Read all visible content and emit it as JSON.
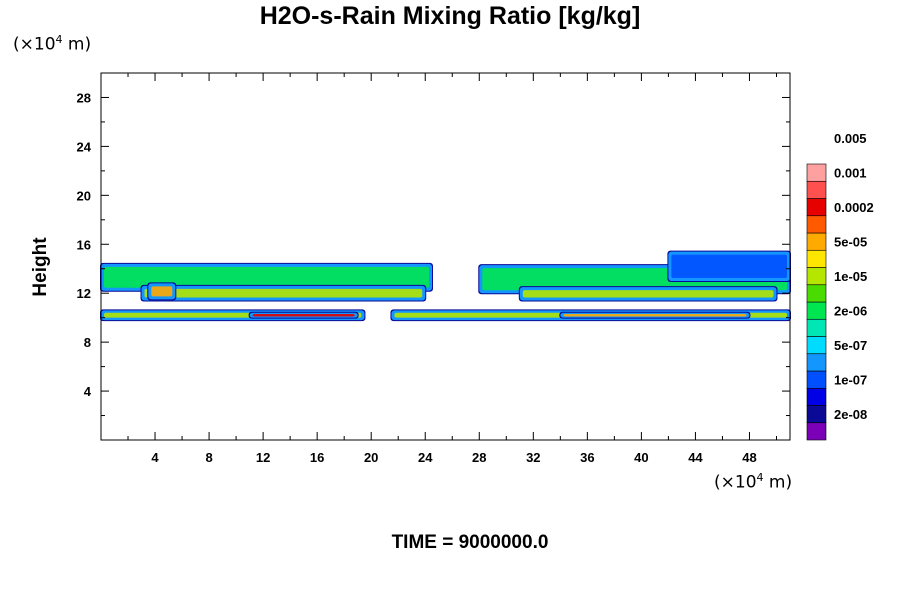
{
  "title": "H2O-s-Rain Mixing Ratio [kg/kg]",
  "y_unit": {
    "prefix": "(×10",
    "exp": "4",
    "suffix": " m)"
  },
  "x_unit": {
    "prefix": "(×10",
    "exp": "4",
    "suffix": " m)"
  },
  "footer_time": "TIME = 9000000.0",
  "chart_data": {
    "type": "heatmap",
    "title": "H2O-s-Rain Mixing Ratio [kg/kg]",
    "ylabel": "Height",
    "xlabel": "",
    "x_unit_label": "(×10^4 m)",
    "y_unit_label": "(×10^4 m)",
    "xlim": [
      0,
      51
    ],
    "ylim": [
      0,
      30
    ],
    "x_ticks": [
      "4",
      "8",
      "12",
      "16",
      "20",
      "24",
      "28",
      "32",
      "36",
      "40",
      "44",
      "48"
    ],
    "y_ticks": [
      "4",
      "8",
      "12",
      "16",
      "20",
      "24",
      "28"
    ],
    "colorbar": {
      "levels": [
        "2e-08",
        "1e-07",
        "5e-07",
        "2e-06",
        "1e-05",
        "5e-05",
        "0.0002",
        "0.001",
        "0.005"
      ],
      "colors": [
        "#7b00b8",
        "#0a0a96",
        "#0000e6",
        "#0050ff",
        "#1496ff",
        "#00dcff",
        "#00e6b4",
        "#00e650",
        "#4adc00",
        "#b4e600",
        "#ffe600",
        "#ffaa00",
        "#ff5a00",
        "#e60000",
        "#ff5050",
        "#ffa0a0"
      ]
    },
    "bands": [
      {
        "name": "layer-13km",
        "x": [
          0,
          24.5
        ],
        "y": [
          12.2,
          14.4
        ],
        "level": "2e-06"
      },
      {
        "name": "layer-13km-right",
        "x": [
          28,
          51
        ],
        "y": [
          12.0,
          14.3
        ],
        "level": "2e-06"
      },
      {
        "name": "layer-12km",
        "x": [
          3,
          24
        ],
        "y": [
          11.4,
          12.6
        ],
        "level": "1e-05"
      },
      {
        "name": "layer-12km-right",
        "x": [
          31,
          50
        ],
        "y": [
          11.4,
          12.5
        ],
        "level": "1e-05"
      },
      {
        "name": "layer-10km",
        "x": [
          0,
          19.5
        ],
        "y": [
          9.8,
          10.6
        ],
        "level": "1e-05"
      },
      {
        "name": "layer-10km-right",
        "x": [
          21.5,
          51
        ],
        "y": [
          9.8,
          10.6
        ],
        "level": "1e-05"
      },
      {
        "name": "peak-10km",
        "x": [
          11,
          19
        ],
        "y": [
          10.0,
          10.4
        ],
        "level": "0.0002"
      },
      {
        "name": "peak-10km-right",
        "x": [
          34,
          48
        ],
        "y": [
          10.0,
          10.4
        ],
        "level": "5e-05"
      },
      {
        "name": "turret-45",
        "x": [
          42,
          51
        ],
        "y": [
          13.0,
          15.4
        ],
        "level": "1e-07"
      },
      {
        "name": "peak-12km-left",
        "x": [
          3.5,
          5.5
        ],
        "y": [
          11.5,
          12.8
        ],
        "level": "5e-05"
      }
    ]
  }
}
